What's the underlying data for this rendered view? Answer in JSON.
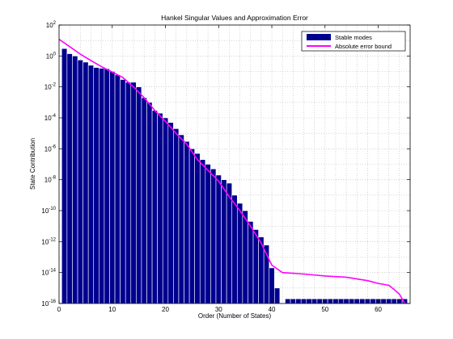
{
  "chart_data": {
    "type": "bar",
    "title": "Hankel Singular Values and Approximation Error",
    "xlabel": "Order (Number of States)",
    "ylabel": "State Contribution",
    "y_scale": "log",
    "ylim": [
      1e-16,
      100
    ],
    "xlim": [
      0,
      66
    ],
    "grid": true,
    "legend_position": "top-right",
    "x_ticks": [
      "0",
      "10",
      "20",
      "30",
      "40",
      "50",
      "60"
    ],
    "y_ticks": [
      {
        "base": "10",
        "exp": "2"
      },
      {
        "base": "10",
        "exp": "0"
      },
      {
        "base": "10",
        "exp": "-2"
      },
      {
        "base": "10",
        "exp": "-4"
      },
      {
        "base": "10",
        "exp": "-6"
      },
      {
        "base": "10",
        "exp": "-8"
      },
      {
        "base": "10",
        "exp": "-10"
      },
      {
        "base": "10",
        "exp": "-12"
      },
      {
        "base": "10",
        "exp": "-14"
      },
      {
        "base": "10",
        "exp": "-16"
      }
    ],
    "series": [
      {
        "name": "Stable modes",
        "kind": "bar",
        "color": "#00008f",
        "x": [
          1,
          2,
          3,
          4,
          5,
          6,
          7,
          8,
          9,
          10,
          11,
          12,
          13,
          14,
          15,
          16,
          17,
          18,
          19,
          20,
          21,
          22,
          23,
          24,
          25,
          26,
          27,
          28,
          29,
          30,
          31,
          32,
          33,
          34,
          35,
          36,
          37,
          38,
          39,
          40,
          41,
          42,
          43,
          44,
          45,
          46,
          47,
          48,
          49,
          50,
          51,
          52,
          53,
          54,
          55,
          56,
          57,
          58,
          59,
          60,
          61,
          62,
          63,
          64,
          65
        ],
        "values": [
          3,
          1.4,
          1,
          0.55,
          0.4,
          0.25,
          0.18,
          0.16,
          0.15,
          0.1,
          0.06,
          0.03,
          0.02,
          0.02,
          0.01,
          0.002,
          0.001,
          0.0003,
          0.0002,
          0.0001,
          5e-05,
          2e-05,
          8e-06,
          3e-06,
          1e-06,
          5e-07,
          2e-07,
          1e-07,
          5e-08,
          2e-08,
          1e-08,
          6e-09,
          1e-09,
          3e-10,
          1e-10,
          2e-11,
          6e-12,
          2e-12,
          6e-13,
          2e-14,
          1e-15,
          1e-16,
          2e-16,
          2e-16,
          2e-16,
          2e-16,
          2e-16,
          2e-16,
          2e-16,
          2e-16,
          2e-16,
          2e-16,
          2e-16,
          2e-16,
          2e-16,
          2e-16,
          2e-16,
          2e-16,
          2e-16,
          2e-16,
          2e-16,
          2e-16,
          2e-16,
          2e-16,
          2e-16
        ]
      },
      {
        "name": "Absolute error bound",
        "kind": "line",
        "color": "#ff00ff",
        "x": [
          0,
          2,
          4,
          6,
          8,
          10,
          12,
          14,
          16,
          18,
          20,
          22,
          24,
          26,
          28,
          30,
          32,
          34,
          36,
          38,
          40,
          42,
          46,
          50,
          54,
          58,
          60,
          62,
          63,
          64,
          65
        ],
        "values": [
          12,
          4,
          1.3,
          0.5,
          0.2,
          0.09,
          0.04,
          0.01,
          0.002,
          0.0003,
          6e-05,
          1e-05,
          2e-06,
          2e-07,
          4e-08,
          8e-09,
          8e-10,
          1e-10,
          1e-11,
          8e-13,
          3e-14,
          1e-14,
          8e-15,
          6e-15,
          5e-15,
          3e-15,
          2e-15,
          1.5e-15,
          8e-16,
          4e-16,
          1e-16
        ]
      }
    ]
  }
}
